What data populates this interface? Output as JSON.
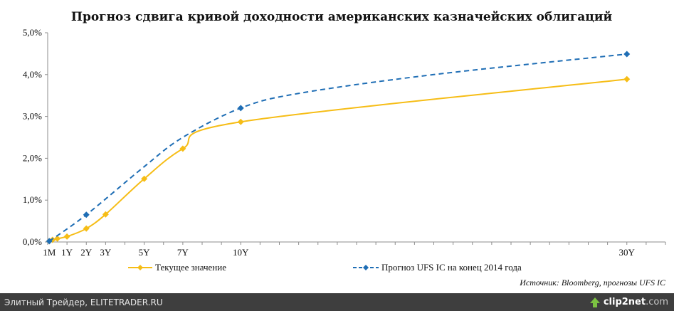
{
  "chart_data": {
    "type": "line",
    "title": "Прогноз сдвига кривой доходности американских казначейских облигаций",
    "y_ticks": [
      "0,0%",
      "1,0%",
      "2,0%",
      "3,0%",
      "4,0%",
      "5,0%"
    ],
    "ylim": [
      0,
      5
    ],
    "xlim": [
      0,
      32
    ],
    "x_tick_labels": [
      {
        "label": "1M",
        "x": 0.083
      },
      {
        "label": "1Y",
        "x": 1
      },
      {
        "label": "2Y",
        "x": 2
      },
      {
        "label": "3Y",
        "x": 3
      },
      {
        "label": "5Y",
        "x": 5
      },
      {
        "label": "7Y",
        "x": 7
      },
      {
        "label": "10Y",
        "x": 10
      },
      {
        "label": "30Y",
        "x": 30
      }
    ],
    "series": [
      {
        "name": "Текущее значение",
        "color": "#f6bd16",
        "style": "solid",
        "marker": "diamond",
        "points": [
          {
            "x": 0.083,
            "y": 0.02
          },
          {
            "x": 0.25,
            "y": 0.05
          },
          {
            "x": 0.5,
            "y": 0.08
          },
          {
            "x": 1,
            "y": 0.13
          },
          {
            "x": 2,
            "y": 0.32
          },
          {
            "x": 3,
            "y": 0.66
          },
          {
            "x": 5,
            "y": 1.51
          },
          {
            "x": 7,
            "y": 2.23
          },
          {
            "x": 10,
            "y": 2.87
          },
          {
            "x": 30,
            "y": 3.89
          }
        ]
      },
      {
        "name": "Прогноз UFS IC на конец 2014 года",
        "color": "#1f6eb5",
        "style": "dashed",
        "marker": "diamond",
        "points": [
          {
            "x": 0.083,
            "y": 0.02
          },
          {
            "x": 2,
            "y": 0.65
          },
          {
            "x": 10,
            "y": 3.2
          },
          {
            "x": 30,
            "y": 4.49
          }
        ],
        "curve_guides": [
          {
            "x": 5,
            "y": 1.8
          },
          {
            "x": 7,
            "y": 2.5
          },
          {
            "x": 13,
            "y": 3.55
          },
          {
            "x": 20,
            "y": 4.0
          }
        ]
      }
    ],
    "grid": false,
    "legend_position": "bottom"
  },
  "legend": {
    "current_label": "Текущее значение",
    "forecast_label": "Прогноз UFS IC на конец 2014 года"
  },
  "source_note": "Источник: Bloomberg, прогнозы UFS IC",
  "footer": {
    "site_text": "Элитный Трейдер, ELITETRADER.RU",
    "brand_main": "clip2net",
    "brand_suffix": ".com",
    "brand_icon": "clip2net-logo-icon"
  }
}
